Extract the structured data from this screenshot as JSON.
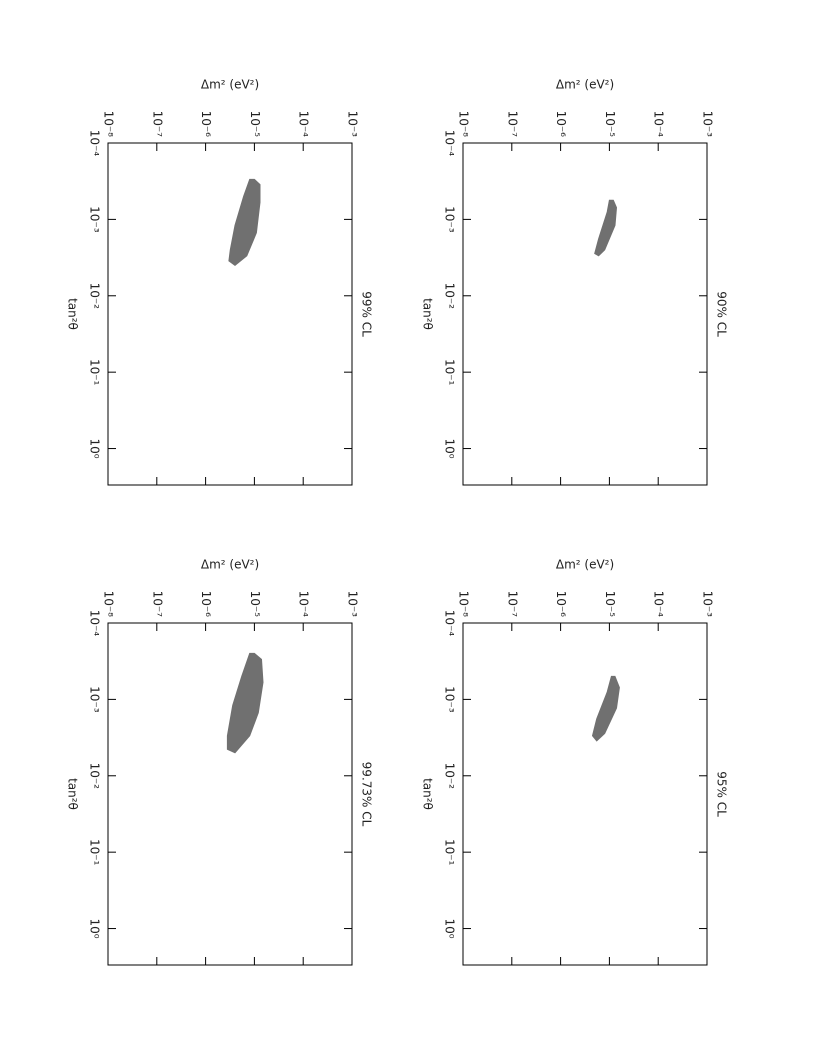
{
  "chart_data": [
    {
      "type": "contour",
      "title": "90% CL",
      "xlabel": "tan²θ",
      "ylabel": "Δm²  (eV²)",
      "xlog": true,
      "ylog": true,
      "xlim": [
        0.0001,
        3
      ],
      "ylim": [
        1e-08,
        0.001
      ],
      "xticks": [
        {
          "value": 0.0001,
          "label": "10⁻⁴"
        },
        {
          "value": 0.001,
          "label": "10⁻³"
        },
        {
          "value": 0.01,
          "label": "10⁻²"
        },
        {
          "value": 0.1,
          "label": "10⁻¹"
        },
        {
          "value": 1,
          "label": "10⁰"
        }
      ],
      "yticks": [
        {
          "value": 1e-08,
          "label": "10⁻⁸"
        },
        {
          "value": 1e-07,
          "label": "10⁻⁷"
        },
        {
          "value": 1e-06,
          "label": "10⁻⁶"
        },
        {
          "value": 1e-05,
          "label": "10⁻⁵"
        },
        {
          "value": 0.0001,
          "label": "10⁻⁴"
        },
        {
          "value": 0.001,
          "label": "10⁻³"
        }
      ],
      "series": [
        {
          "color": "#707070",
          "x": [
            0.00056,
            0.0007,
            0.0012,
            0.0025,
            0.003,
            0.0028,
            0.0018,
            0.0008,
            0.00056
          ],
          "y": [
            1.2e-05,
            1.4e-05,
            1.3e-05,
            8e-06,
            6e-06,
            5e-06,
            6e-06,
            9e-06,
            1e-05
          ]
        }
      ]
    },
    {
      "type": "contour",
      "title": "95% CL",
      "xlabel": "tan²θ",
      "ylabel": "Δm²  (eV²)",
      "xlog": true,
      "ylog": true,
      "xlim": [
        0.0001,
        3
      ],
      "ylim": [
        1e-08,
        0.001
      ],
      "xticks": [
        {
          "value": 0.0001,
          "label": "10⁻⁴"
        },
        {
          "value": 0.001,
          "label": "10⁻³"
        },
        {
          "value": 0.01,
          "label": "10⁻²"
        },
        {
          "value": 0.1,
          "label": "10⁻¹"
        },
        {
          "value": 1,
          "label": "10⁰"
        }
      ],
      "yticks": [
        {
          "value": 1e-08,
          "label": "10⁻⁸"
        },
        {
          "value": 1e-07,
          "label": "10⁻⁷"
        },
        {
          "value": 1e-06,
          "label": "10⁻⁶"
        },
        {
          "value": 1e-05,
          "label": "10⁻⁵"
        },
        {
          "value": 0.0001,
          "label": "10⁻⁴"
        },
        {
          "value": 0.001,
          "label": "10⁻³"
        }
      ],
      "series": [
        {
          "color": "#707070",
          "x": [
            0.0005,
            0.0007,
            0.0013,
            0.0028,
            0.0035,
            0.003,
            0.0018,
            0.0008,
            0.0005
          ],
          "y": [
            1.3e-05,
            1.6e-05,
            1.4e-05,
            8e-06,
            5.5e-06,
            4.5e-06,
            5.5e-06,
            9e-06,
            1.1e-05
          ]
        }
      ]
    },
    {
      "type": "contour",
      "title": "99% CL",
      "xlabel": "tan²θ",
      "ylabel": "Δm²  (eV²)",
      "xlog": true,
      "ylog": true,
      "xlim": [
        0.0001,
        3
      ],
      "ylim": [
        1e-08,
        0.001
      ],
      "xticks": [
        {
          "value": 0.0001,
          "label": "10⁻⁴"
        },
        {
          "value": 0.001,
          "label": "10⁻³"
        },
        {
          "value": 0.01,
          "label": "10⁻²"
        },
        {
          "value": 0.1,
          "label": "10⁻¹"
        },
        {
          "value": 1,
          "label": "10⁰"
        }
      ],
      "yticks": [
        {
          "value": 1e-08,
          "label": "10⁻⁸"
        },
        {
          "value": 1e-07,
          "label": "10⁻⁷"
        },
        {
          "value": 1e-06,
          "label": "10⁻⁶"
        },
        {
          "value": 1e-05,
          "label": "10⁻⁵"
        },
        {
          "value": 0.0001,
          "label": "10⁻⁴"
        },
        {
          "value": 0.001,
          "label": "10⁻³"
        }
      ],
      "series": [
        {
          "color": "#707070",
          "x": [
            0.0003,
            0.00035,
            0.0006,
            0.0015,
            0.003,
            0.004,
            0.0035,
            0.0025,
            0.0012,
            0.0005,
            0.0003
          ],
          "y": [
            1e-05,
            1.3e-05,
            1.3e-05,
            1.1e-05,
            7e-06,
            4e-06,
            3e-06,
            3.2e-06,
            4e-06,
            6e-06,
            8e-06
          ]
        }
      ]
    },
    {
      "type": "contour",
      "title": "99.73% CL",
      "xlabel": "tan²θ",
      "ylabel": "Δm²  (eV²)",
      "xlog": true,
      "ylog": true,
      "xlim": [
        0.0001,
        3
      ],
      "ylim": [
        1e-08,
        0.001
      ],
      "xticks": [
        {
          "value": 0.0001,
          "label": "10⁻⁴"
        },
        {
          "value": 0.001,
          "label": "10⁻³"
        },
        {
          "value": 0.01,
          "label": "10⁻²"
        },
        {
          "value": 0.1,
          "label": "10⁻¹"
        },
        {
          "value": 1,
          "label": "10⁰"
        }
      ],
      "yticks": [
        {
          "value": 1e-08,
          "label": "10⁻⁸"
        },
        {
          "value": 1e-07,
          "label": "10⁻⁷"
        },
        {
          "value": 1e-06,
          "label": "10⁻⁶"
        },
        {
          "value": 1e-05,
          "label": "10⁻⁵"
        },
        {
          "value": 0.0001,
          "label": "10⁻⁴"
        },
        {
          "value": 0.001,
          "label": "10⁻³"
        }
      ],
      "series": [
        {
          "color": "#707070",
          "x": [
            0.00025,
            0.0003,
            0.0006,
            0.0015,
            0.003,
            0.005,
            0.0045,
            0.003,
            0.0012,
            0.0005,
            0.00025
          ],
          "y": [
            1e-05,
            1.4e-05,
            1.5e-05,
            1.2e-05,
            8e-06,
            4e-06,
            2.8e-06,
            2.8e-06,
            3.6e-06,
            5.5e-06,
            8e-06
          ]
        }
      ]
    }
  ]
}
